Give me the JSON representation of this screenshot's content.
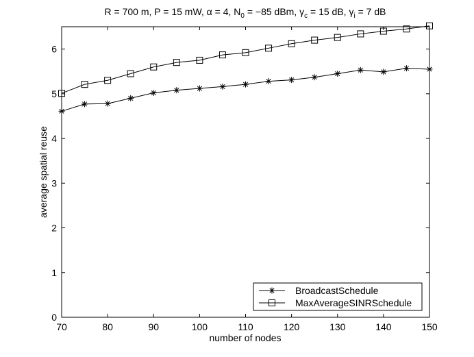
{
  "chart_data": {
    "type": "line",
    "title": {
      "p1": "R = 700 m, P = 15 mW, ",
      "alpha": "α",
      "p2": " = 4, N",
      "n_sub": "0",
      "p3": " = −85 dBm, ",
      "gamma1": "γ",
      "c_sub": "c",
      "p4": " = 15 dB, ",
      "gamma2": "γ",
      "i_sub": "i",
      "p5": " = 7 dB"
    },
    "xlabel": "number of nodes",
    "ylabel": "average spatial reuse",
    "xlim": [
      70,
      150
    ],
    "ylim": [
      0,
      6.5
    ],
    "xticks": [
      70,
      80,
      90,
      100,
      110,
      120,
      130,
      140,
      150
    ],
    "yticks": [
      0,
      1,
      2,
      3,
      4,
      5,
      6
    ],
    "grid": false,
    "legend_position": "bottom-right",
    "x": [
      70,
      75,
      80,
      85,
      90,
      95,
      100,
      105,
      110,
      115,
      120,
      125,
      130,
      135,
      140,
      145,
      150
    ],
    "series": [
      {
        "name": "BroadcastSchedule",
        "marker": "asterisk",
        "values": [
          4.61,
          4.77,
          4.78,
          4.9,
          5.02,
          5.08,
          5.12,
          5.16,
          5.21,
          5.28,
          5.31,
          5.37,
          5.45,
          5.53,
          5.49,
          5.57,
          5.55
        ]
      },
      {
        "name": "MaxAverageSINRSchedule",
        "marker": "square",
        "values": [
          5.01,
          5.21,
          5.3,
          5.45,
          5.6,
          5.7,
          5.75,
          5.87,
          5.92,
          6.02,
          6.12,
          6.2,
          6.26,
          6.34,
          6.4,
          6.45,
          6.52
        ]
      }
    ]
  }
}
